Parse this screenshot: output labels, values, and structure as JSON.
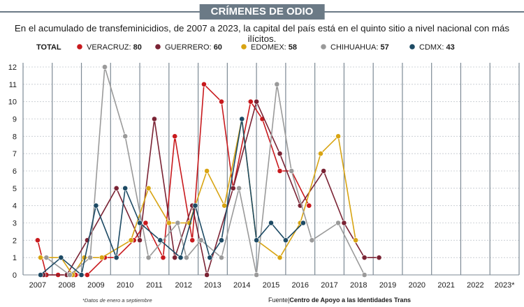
{
  "header": {
    "title": "CRÍMENES DE ODIO",
    "subtitle": "En el acumulado de transfeminicidios, de 2007 a 2023, la capital del país está en el quinto sitio a nivel nacional con más ilícitos."
  },
  "legend": {
    "total_label": "TOTAL",
    "items": [
      {
        "name": "VERACRUZ",
        "total": "80",
        "color": "#c8191d"
      },
      {
        "name": "GUERRERO",
        "total": "60",
        "color": "#7a2334"
      },
      {
        "name": "EDOMEX",
        "total": "58",
        "color": "#d8a412"
      },
      {
        "name": "CHIHUAHUA",
        "total": "57",
        "color": "#9a9a9a"
      },
      {
        "name": "CDMX",
        "total": "43",
        "color": "#1d4a64"
      }
    ]
  },
  "footer": {
    "note": "*Datos de enero a septiembre",
    "source_prefix": "Fuente|",
    "source_name": "Centro de Apoyo a las Identidades Trans"
  },
  "chart_data": {
    "type": "line",
    "title": "CRÍMENES DE ODIO",
    "xlabel": "",
    "ylabel": "",
    "ylim": [
      0,
      12
    ],
    "yticks": [
      "0",
      "1",
      "2",
      "3",
      "4",
      "5",
      "6",
      "7",
      "8",
      "9",
      "10",
      "11",
      "12"
    ],
    "categories": [
      "2007",
      "2008",
      "2009",
      "2010",
      "2011",
      "2012",
      "2013",
      "2014",
      "2015",
      "2016",
      "2017",
      "2018",
      "2019",
      "2020",
      "2021",
      "2022",
      "2023*"
    ],
    "grid": true,
    "series": [
      {
        "name": "VERACRUZ",
        "color": "#c8191d",
        "points": [
          [
            0,
            2
          ],
          [
            0.3,
            0
          ],
          [
            0.7,
            0
          ],
          [
            1.3,
            0
          ],
          [
            1.7,
            0
          ],
          [
            2.3,
            1
          ],
          [
            2.7,
            1
          ],
          [
            3.3,
            2
          ],
          [
            3.7,
            3
          ],
          [
            4.3,
            1
          ],
          [
            4.7,
            8
          ],
          [
            5.3,
            2
          ],
          [
            5.7,
            11
          ],
          [
            6.3,
            10
          ],
          [
            6.7,
            5
          ],
          [
            7.3,
            10
          ],
          [
            7.7,
            9
          ],
          [
            8.3,
            6
          ],
          [
            8.7,
            6
          ],
          [
            9.3,
            4
          ]
        ]
      },
      {
        "name": "GUERRERO",
        "color": "#7a2334",
        "points": [
          [
            0.2,
            0
          ],
          [
            1,
            0
          ],
          [
            1.7,
            2
          ],
          [
            2.7,
            5
          ],
          [
            3.5,
            2
          ],
          [
            4,
            9
          ],
          [
            4.7,
            1
          ],
          [
            5.3,
            4
          ],
          [
            5.8,
            0
          ],
          [
            6.7,
            5
          ],
          [
            7.5,
            10
          ],
          [
            8.3,
            7
          ],
          [
            9,
            4
          ],
          [
            9.8,
            6
          ],
          [
            10.5,
            3
          ],
          [
            11.2,
            1
          ],
          [
            11.7,
            1
          ]
        ]
      },
      {
        "name": "EDOMEX",
        "color": "#d8a412",
        "points": [
          [
            0.1,
            1
          ],
          [
            0.8,
            1
          ],
          [
            1.2,
            0
          ],
          [
            1.6,
            1
          ],
          [
            2.2,
            1
          ],
          [
            3.2,
            2
          ],
          [
            3.8,
            5
          ],
          [
            4.5,
            3
          ],
          [
            5.2,
            3
          ],
          [
            5.8,
            6
          ],
          [
            6.4,
            4
          ],
          [
            7.0,
            9
          ],
          [
            7.5,
            2
          ],
          [
            8.3,
            1
          ],
          [
            9.0,
            3
          ],
          [
            9.7,
            7
          ],
          [
            10.3,
            8
          ],
          [
            10.9,
            2
          ]
        ]
      },
      {
        "name": "CHIHUAHUA",
        "color": "#9a9a9a",
        "points": [
          [
            0.3,
            1
          ],
          [
            1.1,
            0
          ],
          [
            1.8,
            1
          ],
          [
            2.3,
            12
          ],
          [
            3.0,
            8
          ],
          [
            3.8,
            1
          ],
          [
            4.8,
            3
          ],
          [
            5.1,
            1
          ],
          [
            5.6,
            2
          ],
          [
            6.3,
            1
          ],
          [
            6.9,
            5
          ],
          [
            7.5,
            0
          ],
          [
            8.2,
            11
          ],
          [
            8.7,
            6
          ],
          [
            9.4,
            2
          ],
          [
            10.3,
            3
          ],
          [
            11.2,
            0
          ]
        ]
      },
      {
        "name": "CDMX",
        "color": "#1d4a64",
        "points": [
          [
            0.1,
            0
          ],
          [
            0.8,
            1
          ],
          [
            1.5,
            0
          ],
          [
            2.0,
            4
          ],
          [
            2.7,
            1
          ],
          [
            3.0,
            5
          ],
          [
            3.5,
            3
          ],
          [
            4.2,
            2
          ],
          [
            4.9,
            1
          ],
          [
            5.4,
            4
          ],
          [
            5.9,
            1
          ],
          [
            6.3,
            2
          ],
          [
            7.0,
            9
          ],
          [
            7.5,
            2
          ],
          [
            8.0,
            3
          ],
          [
            8.5,
            2
          ],
          [
            9.1,
            3
          ]
        ]
      }
    ]
  }
}
